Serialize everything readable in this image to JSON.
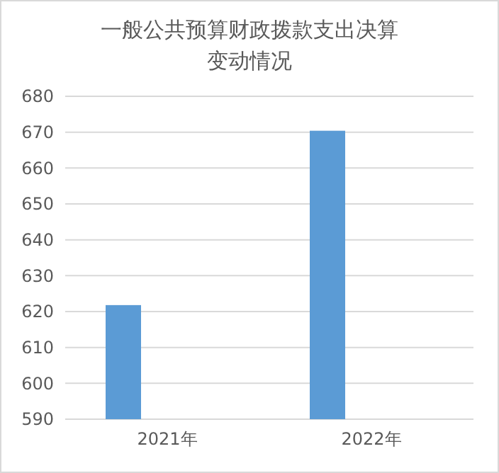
{
  "chart_data": {
    "type": "bar",
    "title": "一般公共预算财政拨款支出决算变动情况",
    "categories": [
      "2021年",
      "2022年"
    ],
    "values": [
      621.8,
      670.4
    ],
    "color": "#5b9bd5",
    "ylim": [
      590,
      680
    ],
    "yticks": [
      590,
      600,
      610,
      620,
      630,
      640,
      650,
      660,
      670,
      680
    ],
    "grid": "y"
  }
}
